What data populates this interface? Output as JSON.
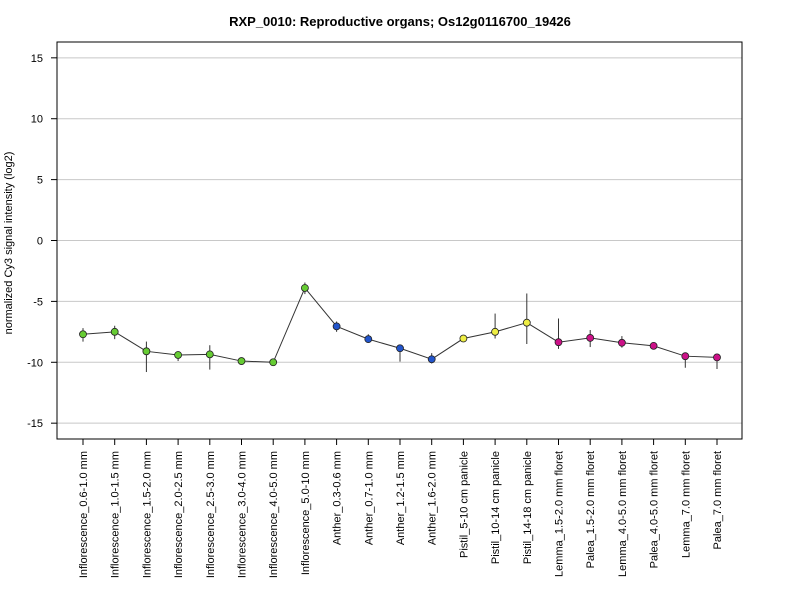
{
  "chart_data": {
    "type": "line",
    "title": "RXP_0010: Reproductive organs; Os12g0116700_19426",
    "ylabel": "normalized Cy3 signal intensity (log2)",
    "xlabel": "",
    "ylim": [
      -16.3,
      16.3
    ],
    "yticks": [
      15,
      10,
      5,
      0,
      -5,
      -10,
      -15
    ],
    "grid": true,
    "legend": "none",
    "categories": [
      "Inflorescence_0.6-1.0 mm",
      "Inflorescence_1.0-1.5 mm",
      "Inflorescence_1.5-2.0 mm",
      "Inflorescence_2.0-2.5 mm",
      "Inflorescence_2.5-3.0 mm",
      "Inflorescence_3.0-4.0 mm",
      "Inflorescence_4.0-5.0 mm",
      "Inflorescence_5.0-10 mm",
      "Anther_0.3-0.6 mm",
      "Anther_0.7-1.0 mm",
      "Anther_1.2-1.5 mm",
      "Anther_1.6-2.0 mm",
      "Pistil_5-10 cm panicle",
      "Pistil_10-14 cm panicle",
      "Pistil_14-18 cm panicle",
      "Lemma_1.5-2.0 mm floret",
      "Palea_1.5-2.0 mm floret",
      "Lemma_4.0-5.0 mm floret",
      "Palea_4.0-5.0 mm floret",
      "Lemma_7.0 mm floret",
      "Palea_7.0 mm floret"
    ],
    "values": [
      -7.7,
      -7.5,
      -9.1,
      -9.4,
      -9.35,
      -9.9,
      -10.0,
      -3.9,
      -7.05,
      -8.1,
      -8.85,
      -9.75,
      -8.05,
      -7.5,
      -6.75,
      -8.35,
      -8.0,
      -8.4,
      -8.65,
      -9.5,
      -9.6
    ],
    "error_low": [
      -8.3,
      -8.1,
      -10.8,
      -9.9,
      -10.6,
      -10.05,
      -10.15,
      -4.4,
      -7.5,
      -8.4,
      -9.95,
      -10.1,
      -8.3,
      -8.05,
      -8.5,
      -8.9,
      -8.75,
      -8.8,
      -8.95,
      -10.45,
      -10.55
    ],
    "error_high": [
      -7.2,
      -7.0,
      -8.3,
      -9.1,
      -8.6,
      -9.75,
      -9.85,
      -3.45,
      -6.65,
      -7.7,
      -8.7,
      -9.25,
      -7.85,
      -6.0,
      -4.35,
      -6.4,
      -7.35,
      -7.85,
      -8.4,
      -9.3,
      -9.3
    ],
    "point_colors": [
      "#66cc33",
      "#66cc33",
      "#66cc33",
      "#66cc33",
      "#66cc33",
      "#66cc33",
      "#66cc33",
      "#66cc33",
      "#2255cc",
      "#2255cc",
      "#2255cc",
      "#2255cc",
      "#eeee44",
      "#eeee44",
      "#eeee44",
      "#cc1188",
      "#cc1188",
      "#cc1188",
      "#cc1188",
      "#cc1188",
      "#cc1188"
    ],
    "line_color": "#333333",
    "grid_color": "#c8c8c8"
  }
}
